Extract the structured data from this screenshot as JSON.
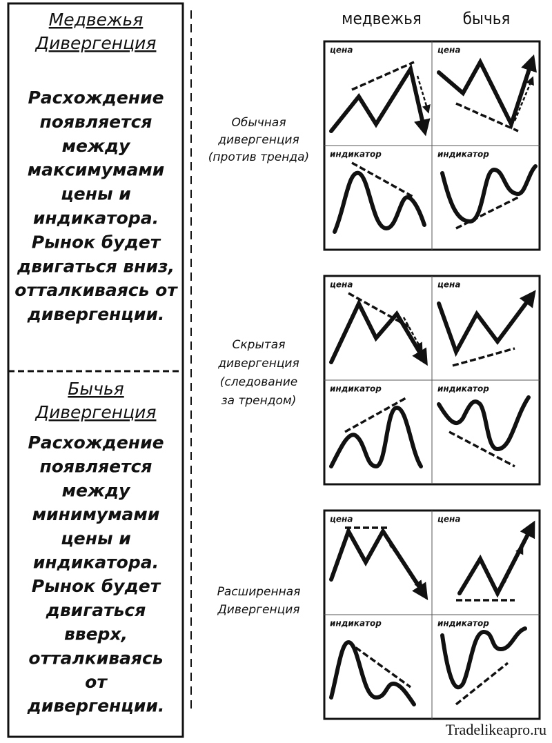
{
  "left_panel": {
    "bearish": {
      "title": [
        "Медвежья",
        "Дивергенция"
      ],
      "body": [
        "Расхождение",
        "появляется",
        "между",
        "максимумами",
        "цены и",
        "индикатора.",
        "Рынок будет",
        "двигаться вниз,",
        "отталкиваясь от",
        "дивергенции."
      ]
    },
    "bullish": {
      "title": [
        "Бычья",
        "Дивергенция"
      ],
      "body": [
        "Расхождение",
        "появляется",
        "между",
        "минимумами",
        "цены и",
        "индикатора.",
        "Рынок будет",
        "двигаться",
        "вверх,",
        "отталкиваясь",
        "от",
        "дивергенции."
      ]
    }
  },
  "column_headers": [
    "медвежья",
    "бычья"
  ],
  "rows": [
    {
      "label": [
        "Обычная",
        "дивергенция",
        "(против тренда)"
      ],
      "cells": [
        "цена",
        "цена",
        "индикатор",
        "индикатор"
      ]
    },
    {
      "label": [
        "Скрытая",
        "дивергенция",
        "(следование",
        "за трендом)"
      ],
      "cells": [
        "цена",
        "цена",
        "индикатор",
        "индикатор"
      ]
    },
    {
      "label": [
        "Расширенная",
        "Дивергенция"
      ],
      "cells": [
        "цена",
        "цена",
        "индикатор",
        "индикатор"
      ]
    }
  ],
  "watermark": "Tradelikeapro.ru"
}
